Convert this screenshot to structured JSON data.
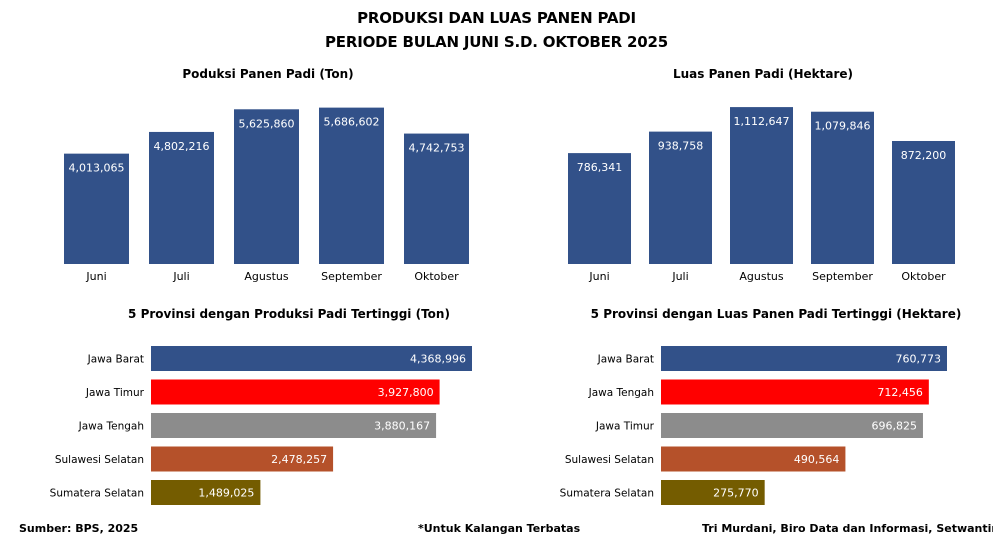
{
  "title_line1": "PRODUKSI DAN LUAS PANEN PADI",
  "title_line2": "PERIODE BULAN JUNI S.D. OKTOBER 2025",
  "colors": {
    "bar_blue": "#325189",
    "red": "#ff0000",
    "gray": "#8c8c8c",
    "orange_brown": "#b5512a",
    "olive": "#745c00"
  },
  "chart_data": [
    {
      "type": "bar",
      "title": "Poduksi Panen Padi (Ton)",
      "categories": [
        "Juni",
        "Juli",
        "Agustus",
        "September",
        "Oktober"
      ],
      "values": [
        4013065,
        4802216,
        5625860,
        5686602,
        4742753
      ],
      "value_labels": [
        "4,013,065",
        "4,802,216",
        "5,625,860",
        "5,686,602",
        "4,742,753"
      ],
      "ylim": [
        0,
        6000000
      ],
      "color": "#325189"
    },
    {
      "type": "bar",
      "title": "Luas Panen Padi (Hektare)",
      "categories": [
        "Juni",
        "Juli",
        "Agustus",
        "September",
        "Oktober"
      ],
      "values": [
        786341,
        938758,
        1112647,
        1079846,
        872200
      ],
      "value_labels": [
        "786,341",
        "938,758",
        "1,112,647",
        "1,079,846",
        "872,200"
      ],
      "ylim": [
        0,
        1170000
      ],
      "color": "#325189"
    },
    {
      "type": "bar",
      "orientation": "horizontal",
      "title": "5 Provinsi dengan Produksi Padi Tertinggi (Ton)",
      "categories": [
        "Jawa Barat",
        "Jawa Timur",
        "Jawa Tengah",
        "Sulawesi Selatan",
        "Sumatera Selatan"
      ],
      "values": [
        4368996,
        3927800,
        3880167,
        2478257,
        1489025
      ],
      "value_labels": [
        "4,368,996",
        "3,927,800",
        "3,880,167",
        "2,478,257",
        "1,489,025"
      ],
      "colors": [
        "#325189",
        "#ff0000",
        "#8c8c8c",
        "#b5512a",
        "#745c00"
      ]
    },
    {
      "type": "bar",
      "orientation": "horizontal",
      "title": "5 Provinsi dengan Luas Panen Padi Tertinggi (Hektare)",
      "categories": [
        "Jawa Barat",
        "Jawa Tengah",
        "Jawa Timur",
        "Sulawesi Selatan",
        "Sumatera Selatan"
      ],
      "values": [
        760773,
        712456,
        696825,
        490564,
        275770
      ],
      "value_labels": [
        "760,773",
        "712,456",
        "696,825",
        "490,564",
        "275,770"
      ],
      "colors": [
        "#325189",
        "#ff0000",
        "#8c8c8c",
        "#b5512a",
        "#745c00"
      ]
    }
  ],
  "footer": {
    "source": "Sumber: BPS, 2025",
    "note": "*Untuk Kalangan Terbatas",
    "author": "Tri Murdani, Biro Data dan Informasi, Setwantimpres"
  }
}
